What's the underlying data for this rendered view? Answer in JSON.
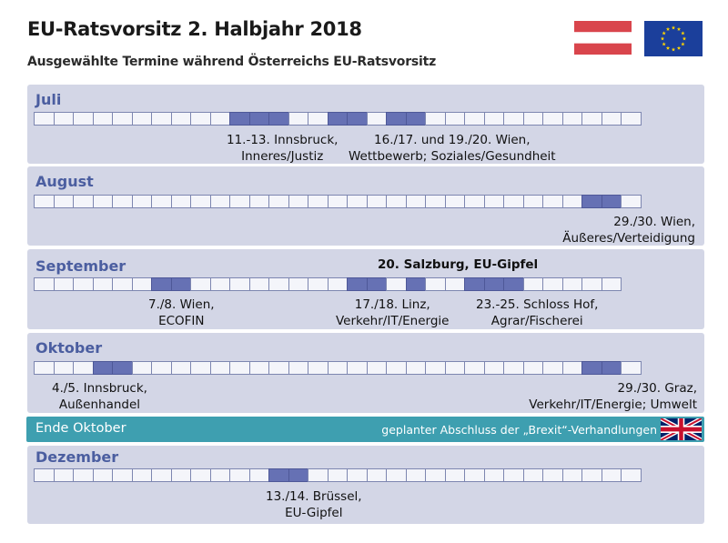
{
  "header": {
    "title": "EU-Ratsvorsitz 2. Halbjahr 2018",
    "subtitle": "Ausgewählte Termine während Österreichs EU-Ratsvorsitz"
  },
  "colors": {
    "panel": "#d3d6e6",
    "day": "#f4f5fa",
    "highlight": "#6671b4",
    "month_label": "#4b5ea0",
    "brexit_bar": "#3e9fb0",
    "austria_red": "#d9454c",
    "eu_blue": "#1b3f9b",
    "eu_stars": "#ffd500"
  },
  "months": [
    {
      "name": "Juli",
      "days_in_month": 31,
      "highlighted_days": [
        11,
        12,
        13,
        16,
        17,
        19,
        20
      ],
      "events": [
        {
          "lines": [
            "11.-13. Innsbruck,",
            "Inneres/Justiz"
          ]
        },
        {
          "lines": [
            "16./17. und 19./20. Wien,",
            "Wettbewerb; Soziales/Gesundheit"
          ]
        }
      ]
    },
    {
      "name": "August",
      "days_in_month": 31,
      "highlighted_days": [
        29,
        30
      ],
      "events": [
        {
          "lines": [
            "29./30. Wien,",
            "Äußeres/Verteidigung"
          ]
        }
      ]
    },
    {
      "name": "September",
      "days_in_month": 30,
      "highlighted_days": [
        7,
        8,
        17,
        18,
        20,
        23,
        24,
        25
      ],
      "events": [
        {
          "lines": [
            "20. Salzburg, EU-Gipfel"
          ]
        },
        {
          "lines": [
            "7./8. Wien,",
            "ECOFIN"
          ]
        },
        {
          "lines": [
            "17./18. Linz,",
            "Verkehr/IT/Energie"
          ]
        },
        {
          "lines": [
            "23.-25. Schloss Hof,",
            "Agrar/Fischerei"
          ]
        }
      ]
    },
    {
      "name": "Oktober",
      "days_in_month": 31,
      "highlighted_days": [
        4,
        5,
        29,
        30
      ],
      "events": [
        {
          "lines": [
            "4./5. Innsbruck,",
            "Außenhandel"
          ]
        },
        {
          "lines": [
            "29./30. Graz,",
            "Verkehr/IT/Energie; Umwelt"
          ]
        }
      ]
    },
    {
      "name": "Dezember",
      "days_in_month": 31,
      "highlighted_days": [
        13,
        14
      ],
      "events": [
        {
          "lines": [
            "13./14. Brüssel,",
            "EU-Gipfel"
          ]
        }
      ]
    }
  ],
  "brexit": {
    "label": "Ende Oktober",
    "note": "geplanter Abschluss der „Brexit“-Verhandlungen",
    "flag": "uk-flag"
  }
}
